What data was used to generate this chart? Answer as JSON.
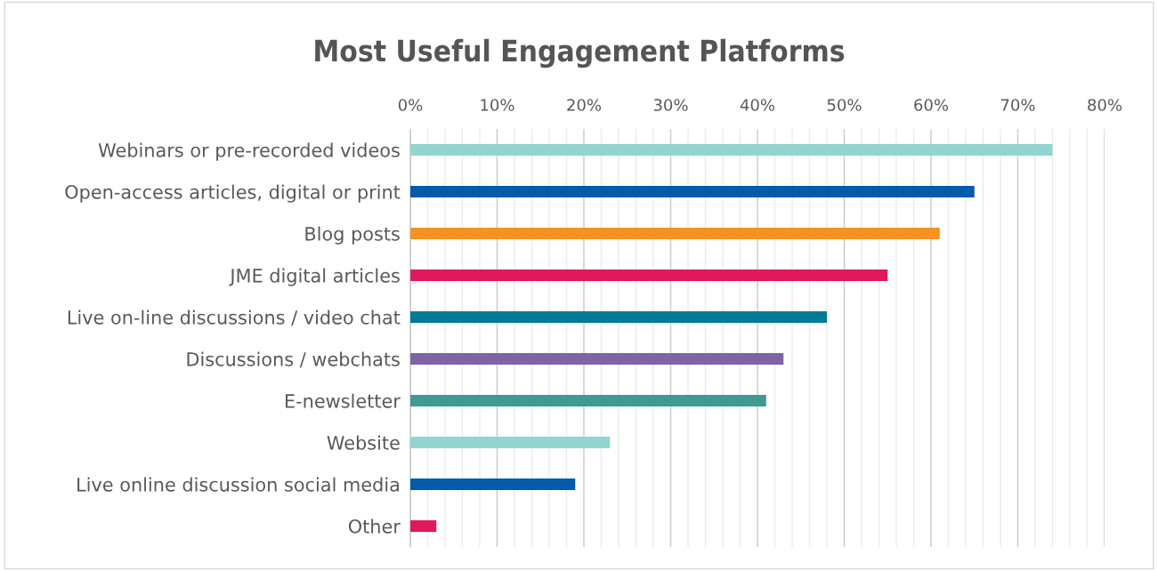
{
  "chart_data": {
    "type": "bar",
    "orientation": "horizontal",
    "title": "Most Useful Engagement Platforms",
    "categories": [
      "Webinars or pre-recorded videos",
      "Open-access articles, digital or print",
      "Blog posts",
      "JME digital articles",
      "Live on-line discussions / video chat",
      "Discussions / webchats",
      "E-newsletter",
      "Website",
      "Live online discussion social media",
      "Other"
    ],
    "values": [
      74,
      65,
      61,
      55,
      48,
      43,
      41,
      23,
      19,
      3
    ],
    "colors": [
      "#93d4cf",
      "#005ba9",
      "#f39322",
      "#e0195f",
      "#007a96",
      "#7f63a6",
      "#3f9a93",
      "#93d4cf",
      "#005ba9",
      "#e0195f"
    ],
    "xlim": [
      0,
      80
    ],
    "xticks": [
      {
        "value": 0,
        "label": "0%"
      },
      {
        "value": 2,
        "label": null
      },
      {
        "value": 4,
        "label": null
      },
      {
        "value": 6,
        "label": null
      },
      {
        "value": 8,
        "label": null
      },
      {
        "value": 10,
        "label": "10%"
      },
      {
        "value": 12,
        "label": null
      },
      {
        "value": 14,
        "label": null
      },
      {
        "value": 16,
        "label": null
      },
      {
        "value": 18,
        "label": null
      },
      {
        "value": 20,
        "label": "20%"
      },
      {
        "value": 22,
        "label": null
      },
      {
        "value": 24,
        "label": null
      },
      {
        "value": 26,
        "label": null
      },
      {
        "value": 28,
        "label": null
      },
      {
        "value": 30,
        "label": "30%"
      },
      {
        "value": 32,
        "label": null
      },
      {
        "value": 34,
        "label": null
      },
      {
        "value": 36,
        "label": null
      },
      {
        "value": 38,
        "label": null
      },
      {
        "value": 40,
        "label": "40%"
      },
      {
        "value": 42,
        "label": null
      },
      {
        "value": 44,
        "label": null
      },
      {
        "value": 46,
        "label": null
      },
      {
        "value": 48,
        "label": null
      },
      {
        "value": 50,
        "label": "50%"
      },
      {
        "value": 52,
        "label": null
      },
      {
        "value": 54,
        "label": null
      },
      {
        "value": 56,
        "label": null
      },
      {
        "value": 58,
        "label": null
      },
      {
        "value": 60,
        "label": "60%"
      },
      {
        "value": 62,
        "label": null
      },
      {
        "value": 64,
        "label": null
      },
      {
        "value": 66,
        "label": null
      },
      {
        "value": 68,
        "label": null
      },
      {
        "value": 70,
        "label": "70%"
      },
      {
        "value": 72,
        "label": null
      },
      {
        "value": 74,
        "label": null
      },
      {
        "value": 76,
        "label": null
      },
      {
        "value": 78,
        "label": null
      },
      {
        "value": 80,
        "label": "80%"
      }
    ],
    "grid": "x"
  }
}
